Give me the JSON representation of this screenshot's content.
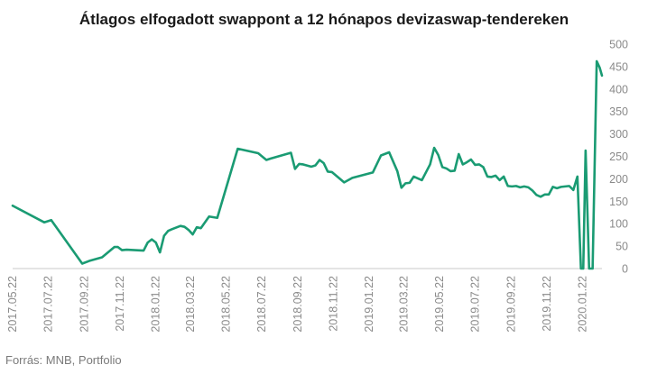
{
  "chart_data": {
    "type": "line",
    "title": "Átlagos elfogadott swappont a 12 hónapos devizaswap-tendereken",
    "source": "Forrás: MNB, Portfolio",
    "xlabel": "",
    "ylabel": "",
    "ylim": [
      0,
      500
    ],
    "y_ticks": [
      0,
      50,
      100,
      150,
      200,
      250,
      300,
      350,
      400,
      450,
      500
    ],
    "y_axis_side": "right",
    "grid": false,
    "line_color": "#1a9b73",
    "x_tick_labels": [
      "2017.05.22",
      "2017.07.22",
      "2017.09.22",
      "2017.11.22",
      "2018.01.22",
      "2018.03.22",
      "2018.05.22",
      "2018.07.22",
      "2018.09.22",
      "2018.11.22",
      "2019.01.22",
      "2019.03.22",
      "2019.05.22",
      "2019.07.22",
      "2019.09.22",
      "2019.11.22",
      "2020.01.22"
    ],
    "series": [
      {
        "points": [
          [
            "2017-05-22",
            140
          ],
          [
            "2017-07-15",
            103
          ],
          [
            "2017-07-27",
            108
          ],
          [
            "2017-09-18",
            11
          ],
          [
            "2017-09-30",
            17
          ],
          [
            "2017-10-22",
            25
          ],
          [
            "2017-11-12",
            48
          ],
          [
            "2017-11-18",
            48
          ],
          [
            "2017-11-25",
            41
          ],
          [
            "2017-12-03",
            42
          ],
          [
            "2018-01-01",
            40
          ],
          [
            "2018-01-08",
            58
          ],
          [
            "2018-01-15",
            65
          ],
          [
            "2018-01-22",
            58
          ],
          [
            "2018-01-29",
            36
          ],
          [
            "2018-02-05",
            73
          ],
          [
            "2018-02-12",
            84
          ],
          [
            "2018-02-19",
            88
          ],
          [
            "2018-03-05",
            95
          ],
          [
            "2018-03-12",
            93
          ],
          [
            "2018-03-19",
            86
          ],
          [
            "2018-03-26",
            76
          ],
          [
            "2018-04-02",
            92
          ],
          [
            "2018-04-09",
            90
          ],
          [
            "2018-04-23",
            116
          ],
          [
            "2018-05-07",
            113
          ],
          [
            "2018-06-11",
            267
          ],
          [
            "2018-07-16",
            257
          ],
          [
            "2018-07-30",
            242
          ],
          [
            "2018-08-06",
            245
          ],
          [
            "2018-09-10",
            258
          ],
          [
            "2018-09-17",
            222
          ],
          [
            "2018-09-24",
            233
          ],
          [
            "2018-10-01",
            232
          ],
          [
            "2018-10-15",
            227
          ],
          [
            "2018-10-22",
            230
          ],
          [
            "2018-10-29",
            242
          ],
          [
            "2018-11-05",
            235
          ],
          [
            "2018-11-12",
            216
          ],
          [
            "2018-11-19",
            215
          ],
          [
            "2018-12-10",
            192
          ],
          [
            "2018-12-24",
            202
          ],
          [
            "2019-01-28",
            214
          ],
          [
            "2019-02-11",
            252
          ],
          [
            "2019-02-25",
            259
          ],
          [
            "2019-03-11",
            217
          ],
          [
            "2019-03-18",
            180
          ],
          [
            "2019-03-25",
            190
          ],
          [
            "2019-04-01",
            191
          ],
          [
            "2019-04-08",
            205
          ],
          [
            "2019-04-22",
            197
          ],
          [
            "2019-05-06",
            232
          ],
          [
            "2019-05-13",
            269
          ],
          [
            "2019-05-20",
            253
          ],
          [
            "2019-05-27",
            226
          ],
          [
            "2019-06-03",
            223
          ],
          [
            "2019-06-10",
            217
          ],
          [
            "2019-06-17",
            218
          ],
          [
            "2019-06-24",
            255
          ],
          [
            "2019-07-01",
            232
          ],
          [
            "2019-07-08",
            237
          ],
          [
            "2019-07-15",
            243
          ],
          [
            "2019-07-22",
            231
          ],
          [
            "2019-07-29",
            232
          ],
          [
            "2019-08-05",
            226
          ],
          [
            "2019-08-12",
            205
          ],
          [
            "2019-08-19",
            204
          ],
          [
            "2019-08-26",
            207
          ],
          [
            "2019-09-02",
            197
          ],
          [
            "2019-09-09",
            205
          ],
          [
            "2019-09-16",
            184
          ],
          [
            "2019-09-23",
            183
          ],
          [
            "2019-09-30",
            184
          ],
          [
            "2019-10-07",
            181
          ],
          [
            "2019-10-14",
            183
          ],
          [
            "2019-10-21",
            181
          ],
          [
            "2019-10-28",
            174
          ],
          [
            "2019-11-04",
            164
          ],
          [
            "2019-11-11",
            160
          ],
          [
            "2019-11-18",
            165
          ],
          [
            "2019-11-25",
            165
          ],
          [
            "2019-12-02",
            182
          ],
          [
            "2019-12-09",
            179
          ],
          [
            "2019-12-16",
            182
          ],
          [
            "2019-12-23",
            183
          ],
          [
            "2019-12-30",
            184
          ],
          [
            "2020-01-06",
            175
          ],
          [
            "2020-01-13",
            205
          ],
          [
            "2020-01-19",
            0
          ],
          [
            "2020-01-23",
            0
          ],
          [
            "2020-01-27",
            263
          ],
          [
            "2020-02-02",
            0
          ],
          [
            "2020-02-08",
            0
          ],
          [
            "2020-02-15",
            462
          ],
          [
            "2020-02-20",
            448
          ],
          [
            "2020-02-24",
            430
          ]
        ]
      }
    ]
  }
}
